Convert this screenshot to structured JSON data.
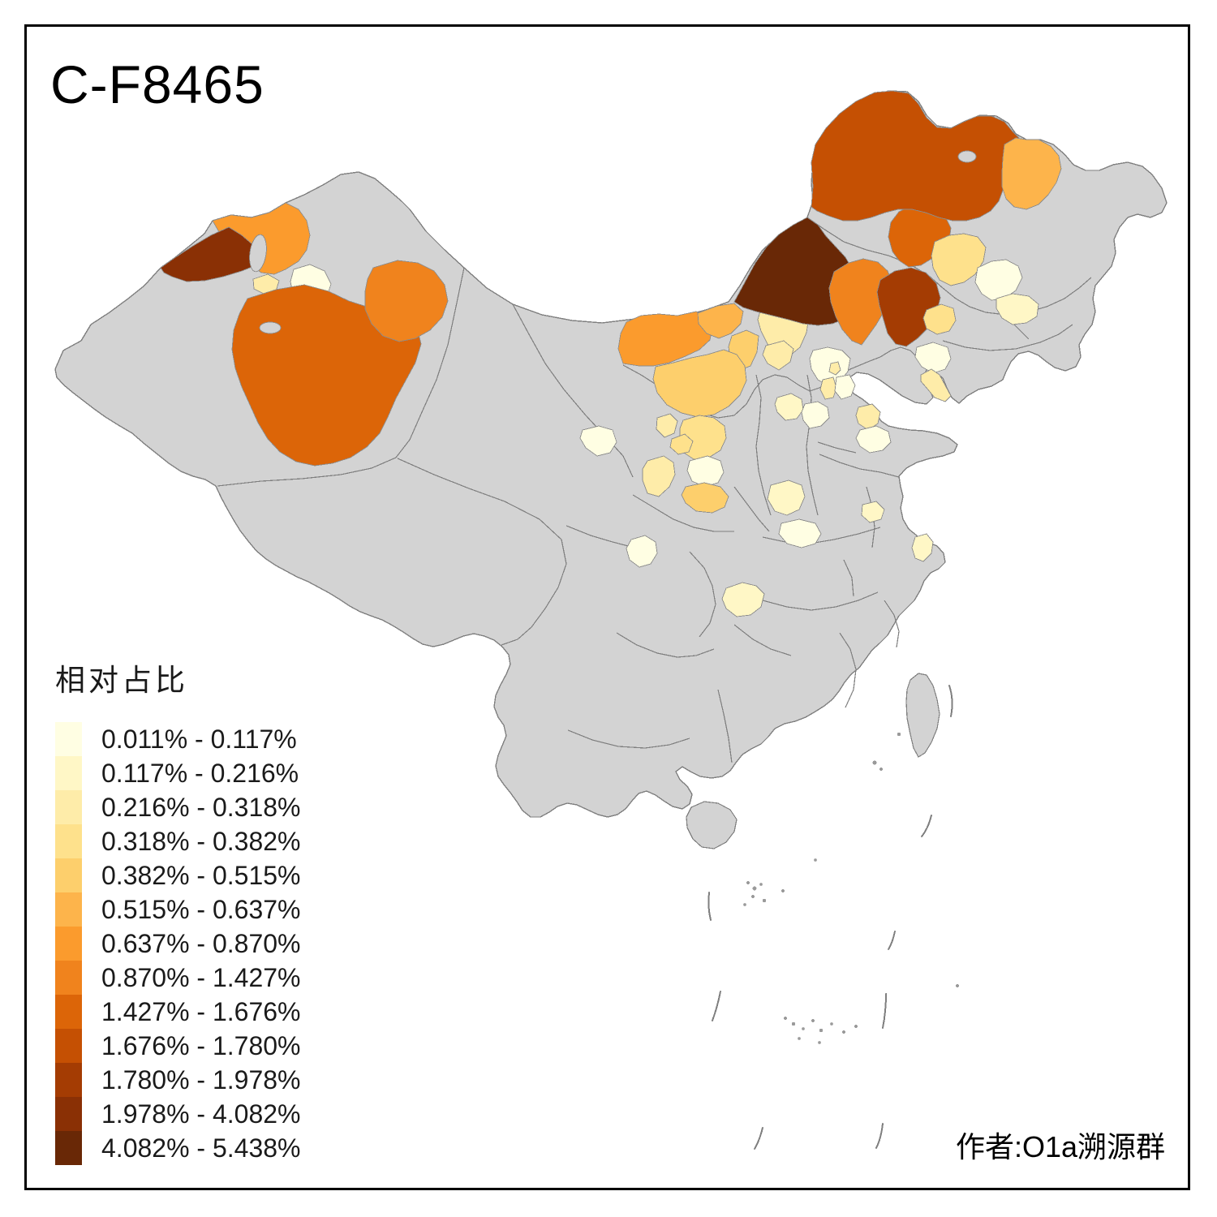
{
  "title": "C-F8465",
  "credit": "作者:O1a溯源群",
  "legend": {
    "title": "相对占比",
    "classes": [
      {
        "label": "0.011% - 0.117%",
        "color": "#FFFEE3"
      },
      {
        "label": "0.117% - 0.216%",
        "color": "#FFF7C6"
      },
      {
        "label": "0.216% - 0.318%",
        "color": "#FEECA9"
      },
      {
        "label": "0.318% - 0.382%",
        "color": "#FEE18C"
      },
      {
        "label": "0.382% - 0.515%",
        "color": "#FDCF6C"
      },
      {
        "label": "0.515% - 0.637%",
        "color": "#FDB44B"
      },
      {
        "label": "0.637% - 0.870%",
        "color": "#FB9B2D"
      },
      {
        "label": "0.870% - 1.427%",
        "color": "#F0831D"
      },
      {
        "label": "1.427% - 1.676%",
        "color": "#DC6508"
      },
      {
        "label": "1.676% - 1.780%",
        "color": "#C55003"
      },
      {
        "label": "1.780% - 1.978%",
        "color": "#A43C03"
      },
      {
        "label": "1.978% - 4.082%",
        "color": "#8A3005"
      },
      {
        "label": "4.082% - 5.438%",
        "color": "#692806"
      }
    ]
  },
  "map": {
    "land_color": "#D3D3D3",
    "boundary_color": "#7F7F7F",
    "sea_color": "#FFFFFF",
    "no_data_color": "#D3D3D3"
  },
  "regions": {
    "tacheng": {
      "range": "0.637% - 0.870%",
      "color": "#FB9B2D"
    },
    "ili-border-strip": {
      "range": "1.978% - 4.082%",
      "color": "#8A3005"
    },
    "urumqi": {
      "range": "0.011% - 0.117%",
      "color": "#FFFEE3"
    },
    "shihezi": {
      "range": "0.216% - 0.318%",
      "color": "#FEECA9"
    },
    "bayingolin": {
      "range": "1.427% - 1.676%",
      "color": "#DC6508"
    },
    "hami": {
      "range": "0.870% - 1.427%",
      "color": "#F0831D"
    },
    "alxa": {
      "range": "0.637% - 0.870%",
      "color": "#FB9B2D"
    },
    "bayannur": {
      "range": "0.515% - 0.637%",
      "color": "#FDB44B"
    },
    "baotou": {
      "range": "0.382% - 0.515%",
      "color": "#FDCF6C"
    },
    "ordos": {
      "range": "0.382% - 0.515%",
      "color": "#FDCF6C"
    },
    "ulanqab": {
      "range": "0.216% - 0.318%",
      "color": "#FEECA9"
    },
    "zhangjiakou": {
      "range": "0.216% - 0.318%",
      "color": "#FEECA9"
    },
    "xilingol": {
      "range": "4.082% - 5.438%",
      "color": "#692806"
    },
    "chifeng": {
      "range": "0.870% - 1.427%",
      "color": "#F0831D"
    },
    "tongliao": {
      "range": "1.780% - 1.978%",
      "color": "#A43C03"
    },
    "hinggan": {
      "range": "1.427% - 1.676%",
      "color": "#DC6508"
    },
    "hulunbuir": {
      "range": "1.676% - 1.780%",
      "color": "#C55003"
    },
    "heihe": {
      "range": "0.515% - 0.637%",
      "color": "#FDB44B"
    },
    "qiqihar": {
      "range": "0.318% - 0.382%",
      "color": "#FEE18C"
    },
    "suihua": {
      "range": "0.011% - 0.117%",
      "color": "#FFFEE3"
    },
    "harbin": {
      "range": "0.117% - 0.216%",
      "color": "#FFF7C6"
    },
    "songyuan": {
      "range": "0.318% - 0.382%",
      "color": "#FEE18C"
    },
    "chaoyang": {
      "range": "0.011% - 0.117%",
      "color": "#FFFEE3"
    },
    "dalian": {
      "range": "0.216% - 0.318%",
      "color": "#FEECA9"
    },
    "beijing": {
      "range": "0.011% - 0.117%",
      "color": "#FFFEE3"
    },
    "beijing-enclave": {
      "range": "0.216% - 0.318%",
      "color": "#FEECA9"
    },
    "langfang": {
      "range": "0.216% - 0.318%",
      "color": "#FEECA9"
    },
    "tianjin": {
      "range": "0.011% - 0.117%",
      "color": "#FFFEE3"
    },
    "dongying": {
      "range": "0.216% - 0.318%",
      "color": "#FEECA9"
    },
    "weifang": {
      "range": "0.011% - 0.117%",
      "color": "#FFFEE3"
    },
    "xinzhou": {
      "range": "0.117% - 0.216%",
      "color": "#FFF7C6"
    },
    "shijiazhuang": {
      "range": "0.011% - 0.117%",
      "color": "#FFFEE3"
    },
    "yanan": {
      "range": "0.318% - 0.382%",
      "color": "#FEE18C"
    },
    "yinchuan": {
      "range": "0.216% - 0.318%",
      "color": "#FEECA9"
    },
    "wuzhong": {
      "range": "0.318% - 0.382%",
      "color": "#FEE18C"
    },
    "lanzhou": {
      "range": "0.011% - 0.117%",
      "color": "#FFFEE3"
    },
    "tianshui": {
      "range": "0.216% - 0.318%",
      "color": "#FEECA9"
    },
    "xian": {
      "range": "0.011% - 0.117%",
      "color": "#FFFEE3"
    },
    "pingliang": {
      "range": "0.382% - 0.515%",
      "color": "#FDCF6C"
    },
    "zhengzhou": {
      "range": "0.117% - 0.216%",
      "color": "#FFF7C6"
    },
    "xinyang": {
      "range": "0.011% - 0.117%",
      "color": "#FFFEE3"
    },
    "huainan": {
      "range": "0.117% - 0.216%",
      "color": "#FFF7C6"
    },
    "yichang": {
      "range": "0.117% - 0.216%",
      "color": "#FFF7C6"
    },
    "chengdu": {
      "range": "0.011% - 0.117%",
      "color": "#FFFEE3"
    },
    "shanghai": {
      "range": "0.117% - 0.216%",
      "color": "#FFF7C6"
    }
  },
  "chart_data": {
    "type": "choropleth_map",
    "title": "C-F8465",
    "legend_title": "相对占比",
    "legend_position": "bottom-left",
    "class_breaks_percent": [
      0.011,
      0.117,
      0.216,
      0.318,
      0.382,
      0.515,
      0.637,
      0.87,
      1.427,
      1.676,
      1.78,
      1.978,
      4.082,
      5.438
    ],
    "palette": [
      "#FFFEE3",
      "#FFF7C6",
      "#FEECA9",
      "#FEE18C",
      "#FDCF6C",
      "#FDB44B",
      "#FB9B2D",
      "#F0831D",
      "#DC6508",
      "#C55003",
      "#A43C03",
      "#8A3005",
      "#692806"
    ],
    "geography": "China prefecture-level divisions",
    "no_data": "gray",
    "annotation": "作者:O1a溯源群"
  }
}
